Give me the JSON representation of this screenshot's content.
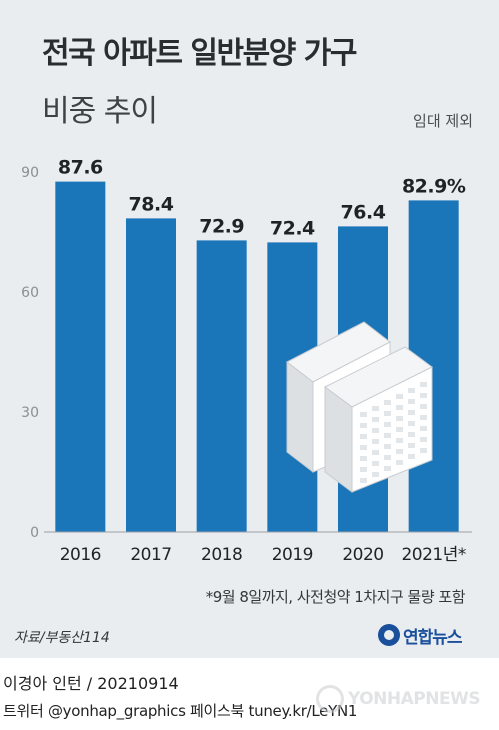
{
  "header": {
    "title": "전국 아파트 일반분양 가구",
    "subtitle": "비중 추이",
    "note": "임대 제외"
  },
  "chart_data": {
    "type": "bar",
    "title": "전국 아파트 일반분양 가구 비중 추이",
    "categories": [
      "2016",
      "2017",
      "2018",
      "2019",
      "2020",
      "2021년*"
    ],
    "values": [
      87.6,
      78.4,
      72.9,
      72.4,
      76.4,
      82.9
    ],
    "value_labels": [
      "87.6",
      "78.4",
      "72.9",
      "72.4",
      "76.4",
      "82.9%"
    ],
    "yticks": [
      "0",
      "30",
      "60",
      "90"
    ],
    "ylim": [
      0,
      90
    ],
    "grid": false,
    "bar_color": "#1a75b9"
  },
  "footnote": "*9월 8일까지, 사전청약 1차지구 물량 포함",
  "source": "자료/부동산114",
  "logo": {
    "text": "연합뉴스",
    "icon": "yonhap-logo-icon"
  },
  "credit": "이경아 인턴 / 20210914",
  "social": "트위터 @yonhap_graphics  페이스북 tuney.kr/LeYN1",
  "watermark": "YONHAPNEWS",
  "illustration": "apartment-buildings-icon"
}
